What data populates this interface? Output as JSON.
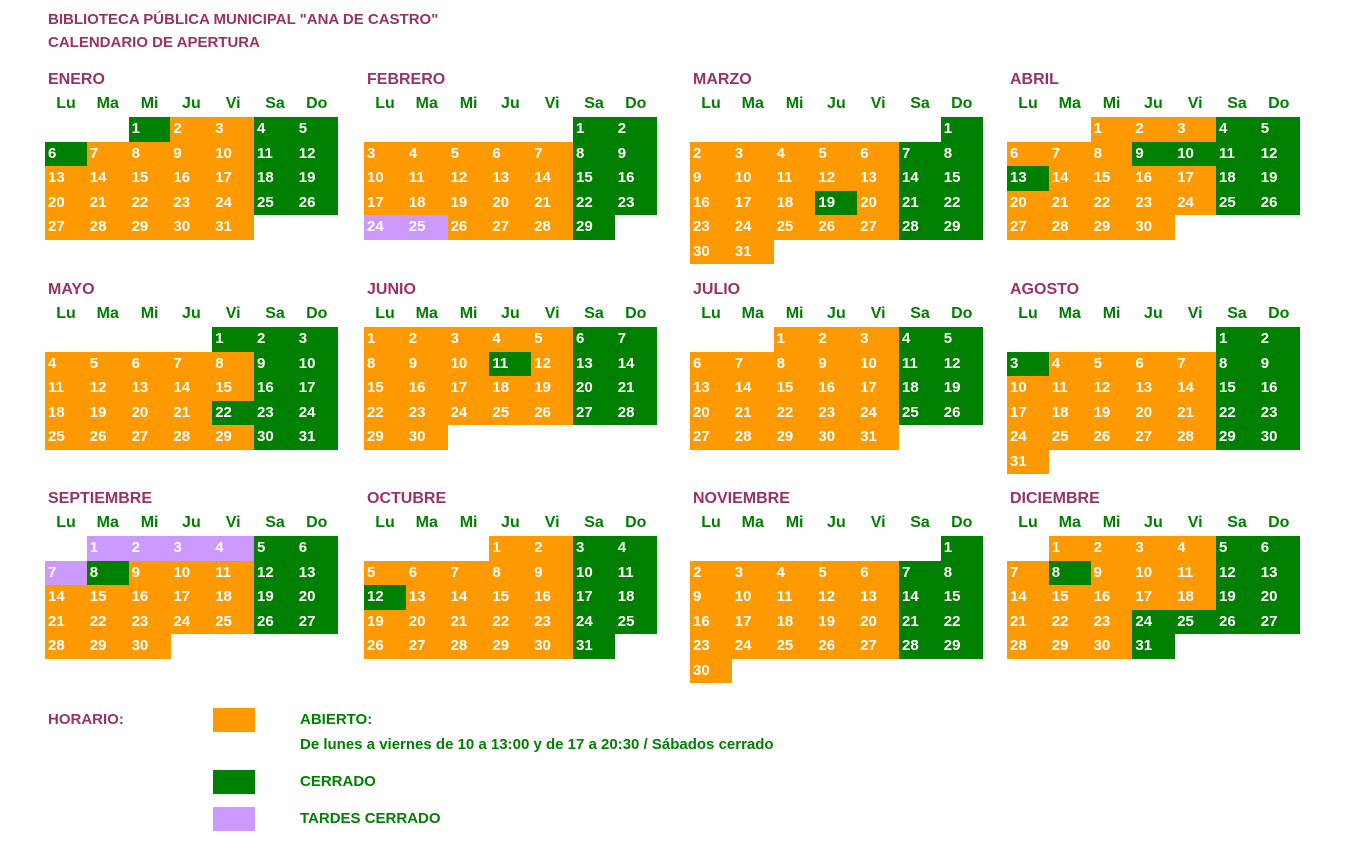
{
  "header": {
    "line1": "BIBLIOTECA PÚBLICA MUNICIPAL \"ANA DE CASTRO\"",
    "line2": "CALENDARIO DE APERTURA"
  },
  "weekdays": [
    "Lu",
    "Ma",
    "Mi",
    "Ju",
    "Vi",
    "Sa",
    "Do"
  ],
  "colors": {
    "abierto": "#ff9900",
    "cerrado": "#008000",
    "tardes_cerrado": "#cc99ff",
    "title": "#993366"
  },
  "months": [
    {
      "name": "ENERO",
      "start_weekday": 2,
      "days": 31,
      "closed": [
        1,
        6
      ],
      "afternoons_closed": []
    },
    {
      "name": "FEBRERO",
      "start_weekday": 5,
      "days": 29,
      "closed": [],
      "afternoons_closed": [
        24,
        25
      ]
    },
    {
      "name": "MARZO",
      "start_weekday": 6,
      "days": 31,
      "closed": [
        19
      ],
      "afternoons_closed": []
    },
    {
      "name": "ABRIL",
      "start_weekday": 2,
      "days": 30,
      "closed": [
        9,
        10,
        13
      ],
      "afternoons_closed": []
    },
    {
      "name": "MAYO",
      "start_weekday": 4,
      "days": 31,
      "closed": [
        1,
        22
      ],
      "afternoons_closed": []
    },
    {
      "name": "JUNIO",
      "start_weekday": 0,
      "days": 30,
      "closed": [
        11
      ],
      "afternoons_closed": []
    },
    {
      "name": "JULIO",
      "start_weekday": 2,
      "days": 31,
      "closed": [],
      "afternoons_closed": []
    },
    {
      "name": "AGOSTO",
      "start_weekday": 5,
      "days": 31,
      "closed": [
        3
      ],
      "afternoons_closed": []
    },
    {
      "name": "SEPTIEMBRE",
      "start_weekday": 1,
      "days": 30,
      "closed": [
        8
      ],
      "afternoons_closed": [
        1,
        2,
        3,
        4,
        7
      ]
    },
    {
      "name": "OCTUBRE",
      "start_weekday": 3,
      "days": 31,
      "closed": [
        12
      ],
      "afternoons_closed": []
    },
    {
      "name": "NOVIEMBRE",
      "start_weekday": 6,
      "days": 30,
      "closed": [],
      "afternoons_closed": []
    },
    {
      "name": "DICIEMBRE",
      "start_weekday": 1,
      "days": 31,
      "closed": [
        8,
        24,
        25,
        26,
        31
      ],
      "afternoons_closed": []
    }
  ],
  "legend": {
    "title": "HORARIO:",
    "abierto_label": "ABIERTO:",
    "abierto_detail": "De lunes a viernes de 10 a 13:00 y de 17 a 20:30 / Sábados cerrado",
    "cerrado_label": "CERRADO",
    "tardes_label": "TARDES CERRADO"
  }
}
